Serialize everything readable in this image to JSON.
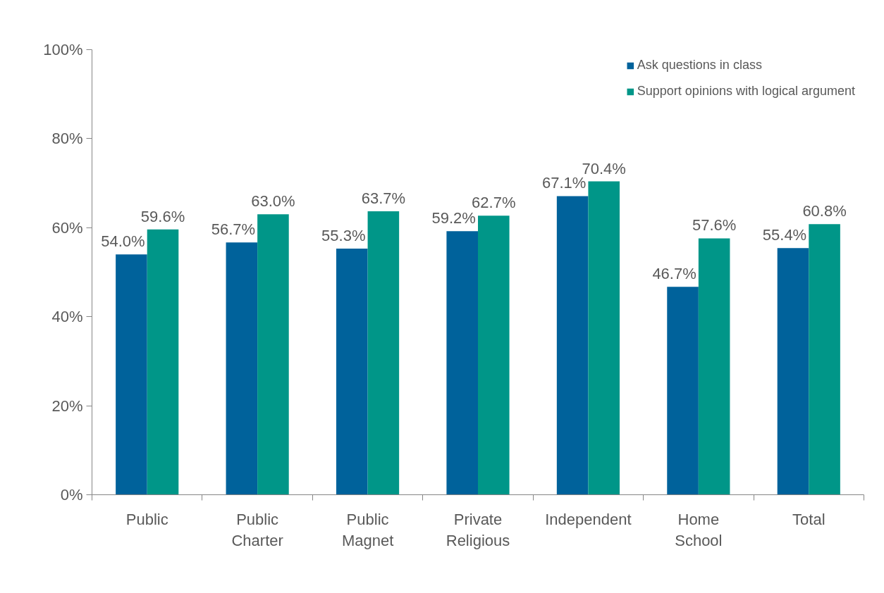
{
  "chart_data": {
    "type": "bar",
    "categories": [
      "Public",
      "Public\nCharter",
      "Public\nMagnet",
      "Private\nReligious",
      "Independent",
      "Home\nSchool",
      "Total"
    ],
    "series": [
      {
        "name": "Ask questions in class",
        "color": "#00629b",
        "values": [
          54.0,
          56.7,
          55.3,
          59.2,
          67.1,
          46.7,
          55.4
        ],
        "value_labels": [
          "54.0%",
          "56.7%",
          "55.3%",
          "59.2%",
          "67.1%",
          "46.7%",
          "55.4%"
        ]
      },
      {
        "name": "Support opinions with logical argument",
        "color": "#009688",
        "values": [
          59.6,
          63.0,
          63.7,
          62.7,
          70.4,
          57.6,
          60.8
        ],
        "value_labels": [
          "59.6%",
          "63.0%",
          "63.7%",
          "62.7%",
          "70.4%",
          "57.6%",
          "60.8%"
        ]
      }
    ],
    "ylim": [
      0,
      100
    ],
    "yticks": [
      {
        "value": 0,
        "label": "0%"
      },
      {
        "value": 20,
        "label": "20%"
      },
      {
        "value": 40,
        "label": "40%"
      },
      {
        "value": 60,
        "label": "60%"
      },
      {
        "value": 80,
        "label": "80%"
      },
      {
        "value": 100,
        "label": "100%"
      }
    ],
    "grid": false,
    "legend": "top right"
  }
}
